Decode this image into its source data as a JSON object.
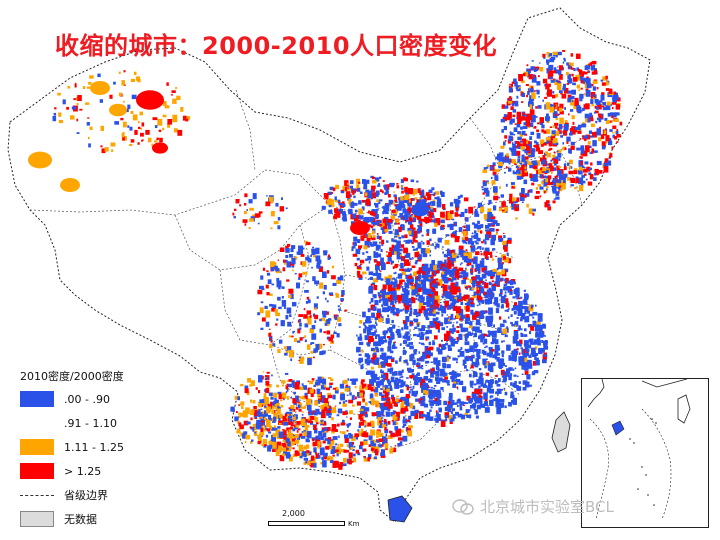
{
  "title": "收缩的城市：2000-2010人口密度变化",
  "legend": {
    "title": "2010密度/2000密度",
    "items": [
      {
        "label": ".00 - .90",
        "color": "#2a52e8"
      },
      {
        "label": ".91 - 1.10",
        "color": "#ffffff"
      },
      {
        "label": "1.11 - 1.25",
        "color": "#ffa500"
      },
      {
        "label": "> 1.25",
        "color": "#ff0000"
      }
    ],
    "boundary_label": "省级边界",
    "nodata_label": "无数据",
    "nodata_color": "#dcdcdc"
  },
  "scale": {
    "value": "2,000",
    "unit": "Km"
  },
  "watermark": "北京城市实验室BCL"
}
